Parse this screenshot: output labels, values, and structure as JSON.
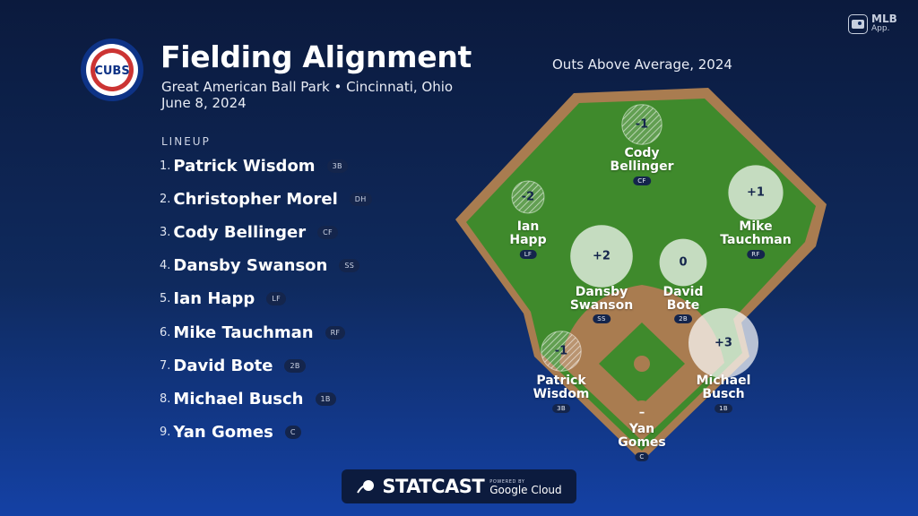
{
  "header": {
    "title": "Fielding Alignment",
    "subtitle": "Great American Ball Park • Cincinnati, Ohio",
    "date": "June 8, 2024",
    "team_logo_text": "CUBS"
  },
  "lineup": {
    "heading": "LINEUP",
    "players": [
      {
        "num": "1.",
        "name": "Patrick Wisdom",
        "pos": "3B"
      },
      {
        "num": "2.",
        "name": "Christopher Morel",
        "pos": "DH"
      },
      {
        "num": "3.",
        "name": "Cody Bellinger",
        "pos": "CF"
      },
      {
        "num": "4.",
        "name": "Dansby Swanson",
        "pos": "SS"
      },
      {
        "num": "5.",
        "name": "Ian Happ",
        "pos": "LF"
      },
      {
        "num": "6.",
        "name": "Mike Tauchman",
        "pos": "RF"
      },
      {
        "num": "7.",
        "name": "David Bote",
        "pos": "2B"
      },
      {
        "num": "8.",
        "name": "Michael Busch",
        "pos": "1B"
      },
      {
        "num": "9.",
        "name": "Yan Gomes",
        "pos": "C"
      }
    ]
  },
  "field": {
    "title": "Outs Above Average, 2024",
    "fielders": [
      {
        "line1": "Cody",
        "line2": "Bellinger",
        "pos": "CF",
        "oaa": "-1",
        "oaa_value": -1
      },
      {
        "line1": "Ian",
        "line2": "Happ",
        "pos": "LF",
        "oaa": "-2",
        "oaa_value": -2
      },
      {
        "line1": "Mike",
        "line2": "Tauchman",
        "pos": "RF",
        "oaa": "+1",
        "oaa_value": 1
      },
      {
        "line1": "Dansby",
        "line2": "Swanson",
        "pos": "SS",
        "oaa": "+2",
        "oaa_value": 2
      },
      {
        "line1": "David",
        "line2": "Bote",
        "pos": "2B",
        "oaa": "0",
        "oaa_value": 0
      },
      {
        "line1": "Patrick",
        "line2": "Wisdom",
        "pos": "3B",
        "oaa": "-1",
        "oaa_value": -1
      },
      {
        "line1": "Michael",
        "line2": "Busch",
        "pos": "1B",
        "oaa": "+3",
        "oaa_value": 3
      },
      {
        "line1": "Yan",
        "line2": "Gomes",
        "pos": "C",
        "oaa": "–",
        "oaa_value": null
      }
    ]
  },
  "branding": {
    "mlb_app": {
      "line1": "MLB",
      "line2": "App."
    },
    "statcast": {
      "word": "STATCAST",
      "powered_by": "POWERED BY",
      "partner": "Google Cloud"
    }
  },
  "colors": {
    "background_top": "#0b1a3d",
    "background_bottom": "#1441a5",
    "grass": "#3f8a2c",
    "dirt": "#a97c50",
    "cubs_blue": "#0e3386",
    "cubs_red": "#cc3433",
    "badge": "#14254c"
  }
}
